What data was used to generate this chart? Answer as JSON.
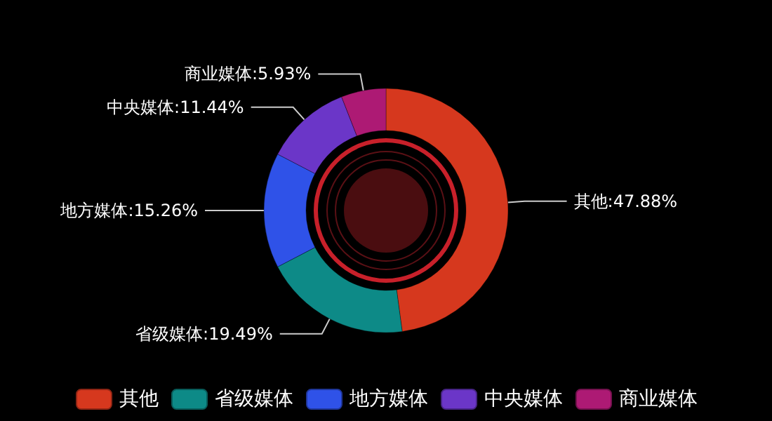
{
  "chart_data": {
    "type": "donut",
    "categories": [
      "其他",
      "省级媒体",
      "地方媒体",
      "中央媒体",
      "商业媒体"
    ],
    "values": [
      47.88,
      19.49,
      15.26,
      11.44,
      5.93
    ],
    "colors": [
      "#d6381e",
      "#0d8a87",
      "#2f52e8",
      "#6b36c8",
      "#ad1a74"
    ],
    "value_labels": [
      "其他:47.88%",
      "省级媒体:19.49%",
      "地方媒体:15.26%",
      "中央媒体:11.44%",
      "商业媒体:5.93%"
    ],
    "legend": "bottom"
  }
}
